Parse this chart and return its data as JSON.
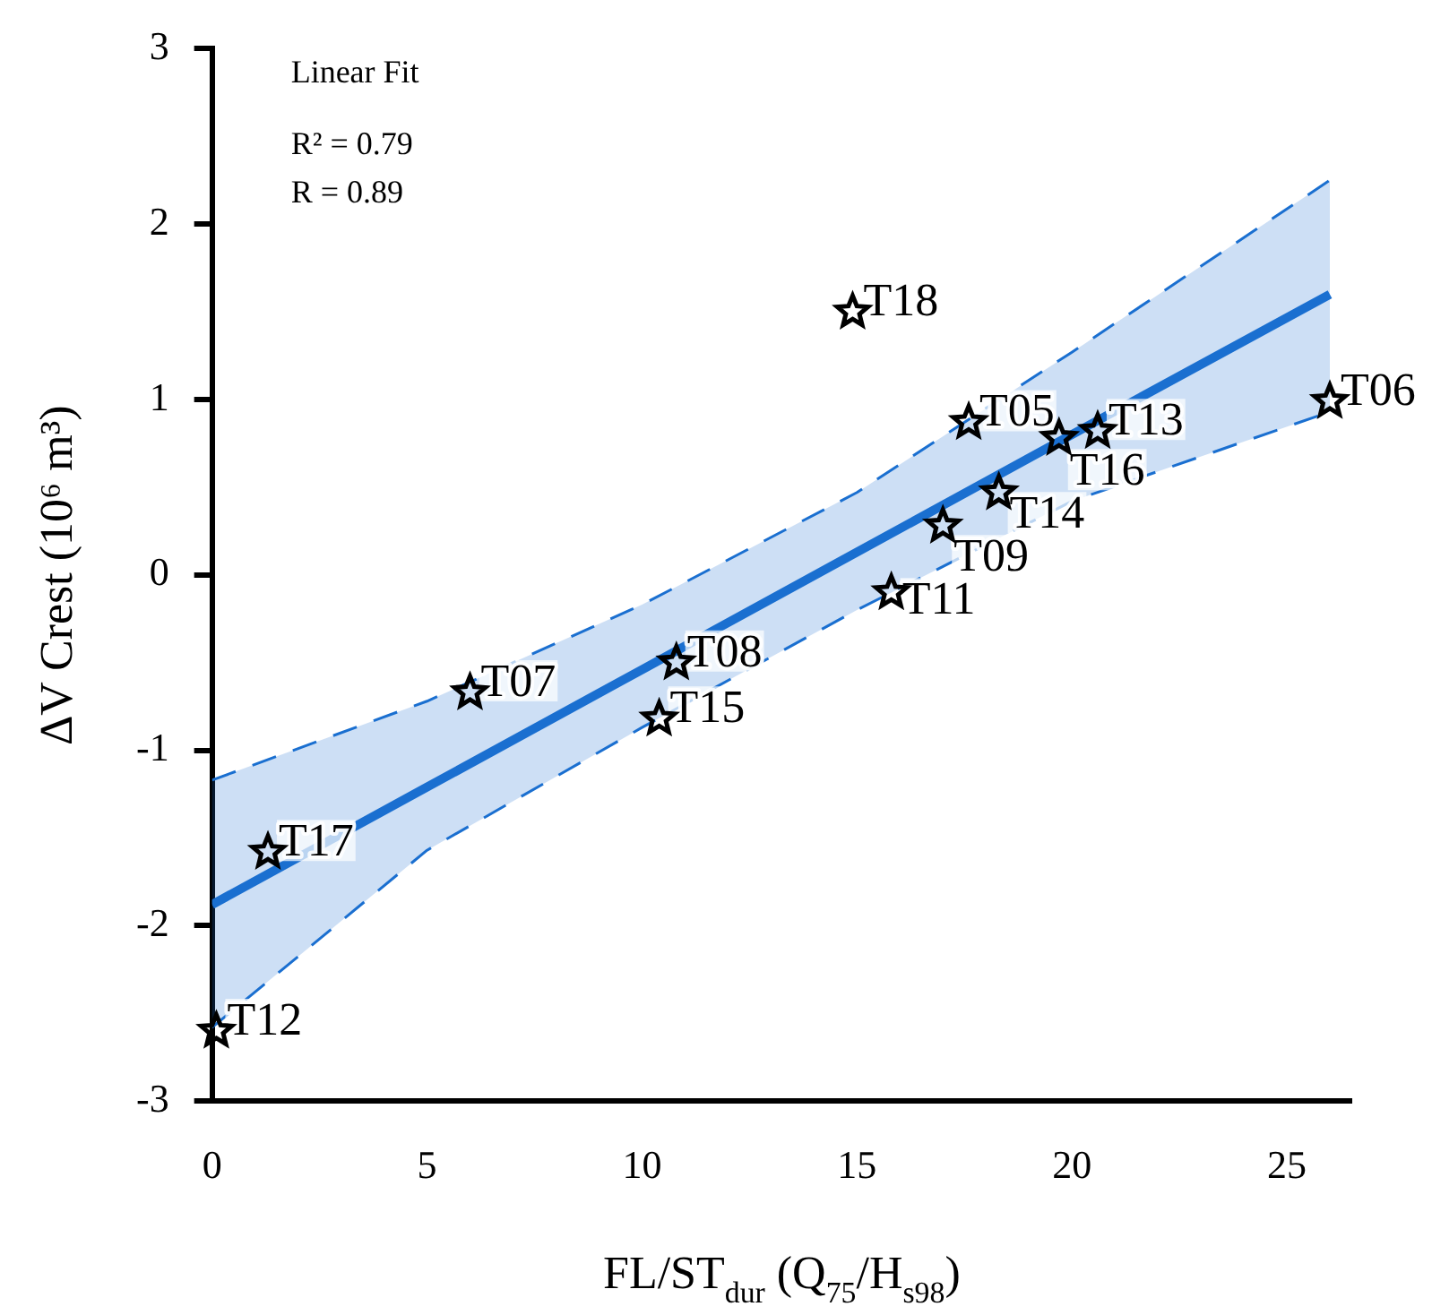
{
  "chart_data": {
    "type": "scatter",
    "xlabel": "FL/ST$_{dur}$ (Q$_{75}$/H$_{s98}$)",
    "ylabel": "ΔV Crest (10⁶ m³)",
    "xlim": [
      0,
      26.5
    ],
    "xticks": [
      0,
      5,
      10,
      15,
      20,
      25
    ],
    "ylim": [
      -3,
      3
    ],
    "yticks": [
      -3,
      -2,
      -1,
      0,
      1,
      2,
      3
    ],
    "grid": false,
    "legend": false,
    "annotations": [
      "Linear Fit",
      "R² = 0.79",
      "R = 0.89",
      {
        "text": "T18",
        "x": 14.9,
        "y": 1.5
      },
      {
        "text": "T05",
        "x": 17.6,
        "y": 0.87
      },
      {
        "text": "T16",
        "x": 19.7,
        "y": 0.78
      },
      {
        "text": "T13",
        "x": 20.6,
        "y": 0.82
      },
      {
        "text": "T06",
        "x": 26.0,
        "y": 0.99
      },
      {
        "text": "T14",
        "x": 18.3,
        "y": 0.47
      },
      {
        "text": "T09",
        "x": 17.0,
        "y": 0.28
      },
      {
        "text": "T11",
        "x": 15.8,
        "y": -0.1
      },
      {
        "text": "T08",
        "x": 10.8,
        "y": -0.5
      },
      {
        "text": "T15",
        "x": 10.4,
        "y": -0.82
      },
      {
        "text": "T07",
        "x": 6.0,
        "y": -0.67
      },
      {
        "text": "T17",
        "x": 1.3,
        "y": -1.58
      },
      {
        "text": "T12",
        "x": 0.1,
        "y": -2.6
      }
    ],
    "series": [
      {
        "type": "line",
        "marker": "none",
        "line_style": "solid",
        "color": "#1a6fd0",
        "x": [
          0,
          5,
          10,
          15,
          20,
          26
        ],
        "values": [
          -1.88,
          -1.21,
          -0.54,
          0.13,
          0.8,
          1.6
        ],
        "lower": [
          -2.58,
          -1.57,
          -0.87,
          -0.2,
          0.42,
          0.93
        ],
        "upper": [
          -1.17,
          -0.72,
          -0.17,
          0.47,
          1.27,
          2.25
        ]
      },
      {
        "type": "line",
        "line_style": "dashed",
        "marker": "none",
        "color": "#1a6fd0",
        "x": [
          0,
          5,
          10,
          15,
          20,
          26
        ],
        "values": [
          -1.17,
          -0.72,
          -0.17,
          0.47,
          1.27,
          2.25
        ]
      },
      {
        "type": "line",
        "line_style": "dashed",
        "marker": "none",
        "color": "#1a6fd0",
        "x": [
          0,
          5,
          10,
          15,
          20,
          26
        ],
        "values": [
          -2.58,
          -1.57,
          -0.87,
          -0.2,
          0.42,
          0.93
        ]
      },
      {
        "type": "scatter",
        "marker": "star",
        "color": "#000000",
        "x": [
          14.9,
          17.6,
          19.7,
          20.6,
          26.0,
          18.3,
          17.0,
          15.8,
          10.8,
          10.4,
          6.0,
          1.3,
          0.1
        ],
        "values": [
          1.5,
          0.87,
          0.78,
          0.82,
          0.99,
          0.47,
          0.28,
          -0.1,
          -0.5,
          -0.82,
          -0.67,
          -1.58,
          -2.6
        ]
      }
    ]
  }
}
